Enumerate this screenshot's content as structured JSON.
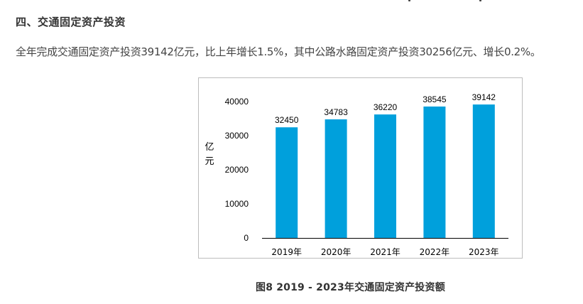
{
  "section": {
    "title": "四、交通固定资产投资"
  },
  "paragraph": {
    "text": "全年完成交通固定资产投资39142亿元，比上年增长1.5%，其中公路水路固定资产投资30256亿元、增长0.2%。"
  },
  "figure": {
    "caption": "图8   2019 - 2023年交通固定资产投资额"
  },
  "chart_data": {
    "type": "bar",
    "categories": [
      "2019年",
      "2020年",
      "2021年",
      "2022年",
      "2023年"
    ],
    "values": [
      32450,
      34783,
      36220,
      38545,
      39142
    ],
    "data_labels": [
      "32450",
      "34783",
      "36220",
      "38545",
      "39142"
    ],
    "ylabel": "亿元",
    "ylim": [
      0,
      40000
    ],
    "yticks": [
      0,
      10000,
      20000,
      30000,
      40000
    ],
    "ytick_labels": [
      "0",
      "10000",
      "20000",
      "30000",
      "40000"
    ],
    "grid": false,
    "legend": "none",
    "bar_color": "#00a0dc"
  }
}
